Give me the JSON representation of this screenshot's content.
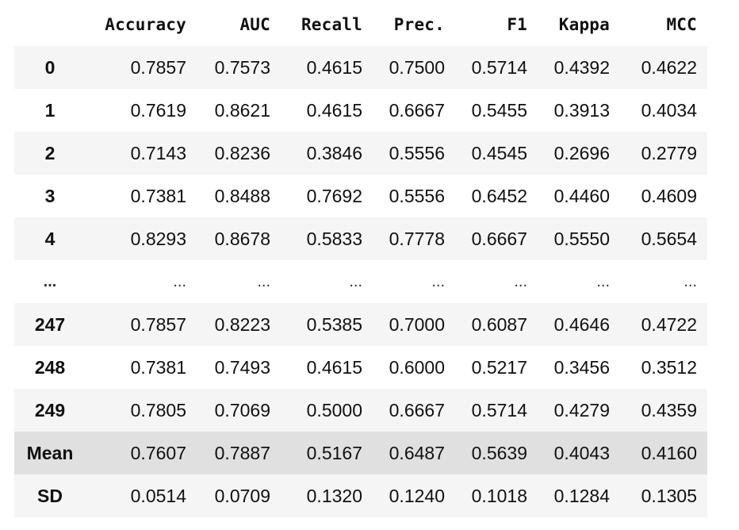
{
  "table": {
    "columns": [
      "",
      "Accuracy",
      "AUC",
      "Recall",
      "Prec.",
      "F1",
      "Kappa",
      "MCC"
    ],
    "rows": [
      {
        "index": "0",
        "values": [
          "0.7857",
          "0.7573",
          "0.4615",
          "0.7500",
          "0.5714",
          "0.4392",
          "0.4622"
        ]
      },
      {
        "index": "1",
        "values": [
          "0.7619",
          "0.8621",
          "0.4615",
          "0.6667",
          "0.5455",
          "0.3913",
          "0.4034"
        ]
      },
      {
        "index": "2",
        "values": [
          "0.7143",
          "0.8236",
          "0.3846",
          "0.5556",
          "0.4545",
          "0.2696",
          "0.2779"
        ]
      },
      {
        "index": "3",
        "values": [
          "0.7381",
          "0.8488",
          "0.7692",
          "0.5556",
          "0.6452",
          "0.4460",
          "0.4609"
        ]
      },
      {
        "index": "4",
        "values": [
          "0.8293",
          "0.8678",
          "0.5833",
          "0.7778",
          "0.6667",
          "0.5550",
          "0.5654"
        ]
      },
      {
        "index": "...",
        "values": [
          "...",
          "...",
          "...",
          "...",
          "...",
          "...",
          "..."
        ]
      },
      {
        "index": "247",
        "values": [
          "0.7857",
          "0.8223",
          "0.5385",
          "0.7000",
          "0.6087",
          "0.4646",
          "0.4722"
        ]
      },
      {
        "index": "248",
        "values": [
          "0.7381",
          "0.7493",
          "0.4615",
          "0.6000",
          "0.5217",
          "0.3456",
          "0.3512"
        ]
      },
      {
        "index": "249",
        "values": [
          "0.7805",
          "0.7069",
          "0.5000",
          "0.6667",
          "0.5714",
          "0.4279",
          "0.4359"
        ]
      },
      {
        "index": "Mean",
        "values": [
          "0.7607",
          "0.7887",
          "0.5167",
          "0.6487",
          "0.5639",
          "0.4043",
          "0.4160"
        ]
      },
      {
        "index": "SD",
        "values": [
          "0.0514",
          "0.0709",
          "0.1320",
          "0.1240",
          "0.1018",
          "0.1284",
          "0.1305"
        ]
      }
    ],
    "highlighted_row": "Mean",
    "colors": {
      "stripe": "#f5f5f5",
      "highlight": "#e0e0e0",
      "text": "#111111"
    }
  }
}
